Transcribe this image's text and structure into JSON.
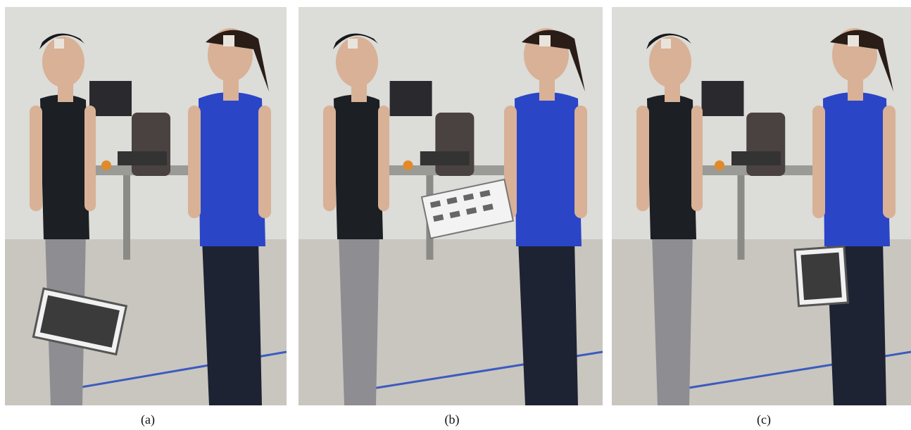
{
  "figure": {
    "panels": [
      {
        "id": "a",
        "caption": "(a)",
        "scene": "participant-holding-box"
      },
      {
        "id": "b",
        "caption": "(b)",
        "scene": "box-handover"
      },
      {
        "id": "c",
        "caption": "(c)",
        "scene": "partner-holding-box"
      }
    ]
  },
  "colors": {
    "wall": "#dcdcd8",
    "floor": "#c9c6bf",
    "tank_top": "#1c1f24",
    "blue_top": "#2b45c7",
    "grey_leggings": "#8d8d92",
    "dark_jeans": "#1d2333",
    "skin": "#d8b196",
    "hair": "#2a1d18"
  }
}
